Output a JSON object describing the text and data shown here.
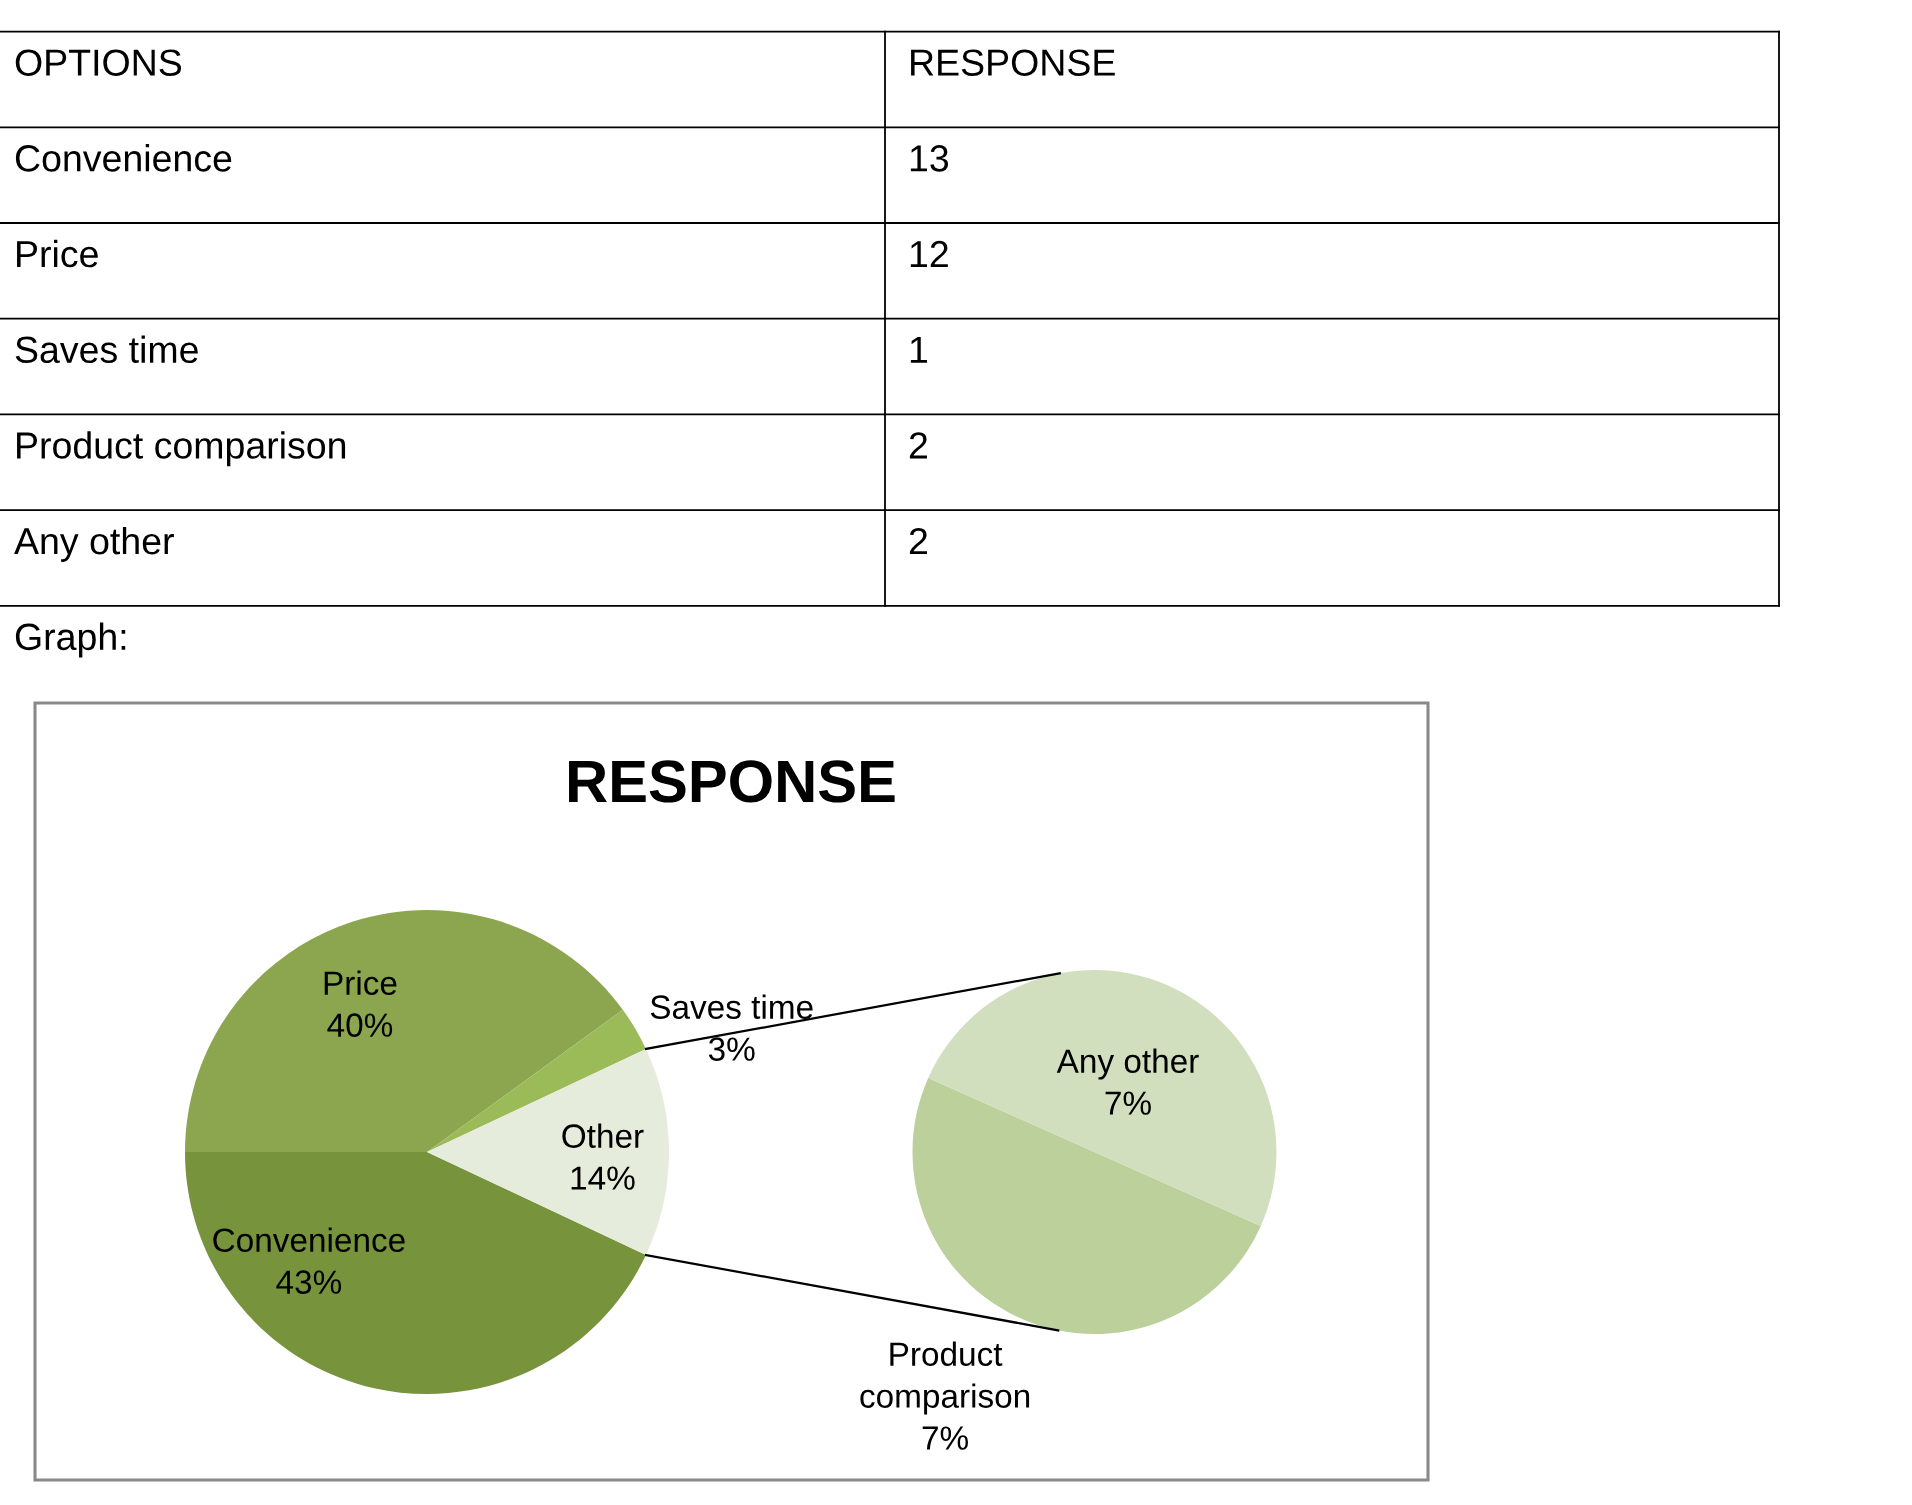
{
  "chart_data": [
    {
      "type": "other",
      "xlabel": "OPTIONS",
      "ylabel": "RESPONSE",
      "categories": [
        "Convenience",
        "Price",
        "Saves time",
        "Product comparison",
        "Any other"
      ],
      "values": [
        13,
        12,
        1,
        2,
        2
      ],
      "data_labels": true,
      "annotations": [
        "Graph:"
      ]
    },
    {
      "type": "pie",
      "title": "RESPONSE",
      "categories": [
        "Convenience",
        "Price",
        "Saves time",
        "Other"
      ],
      "values": [
        43,
        40,
        3,
        14
      ],
      "colors": [
        "#77933c",
        "#8ba64e",
        "#9bbb59",
        "#e6ecdc"
      ],
      "value_labels": [
        "43%",
        "40%",
        "3%",
        "14%"
      ]
    },
    {
      "type": "pie",
      "categories": [
        "Product comparison",
        "Any other"
      ],
      "values": [
        7,
        7
      ],
      "colors": [
        "#bbd09a",
        "#d1dfbe"
      ],
      "value_labels": [
        "7%",
        "7%"
      ]
    }
  ]
}
